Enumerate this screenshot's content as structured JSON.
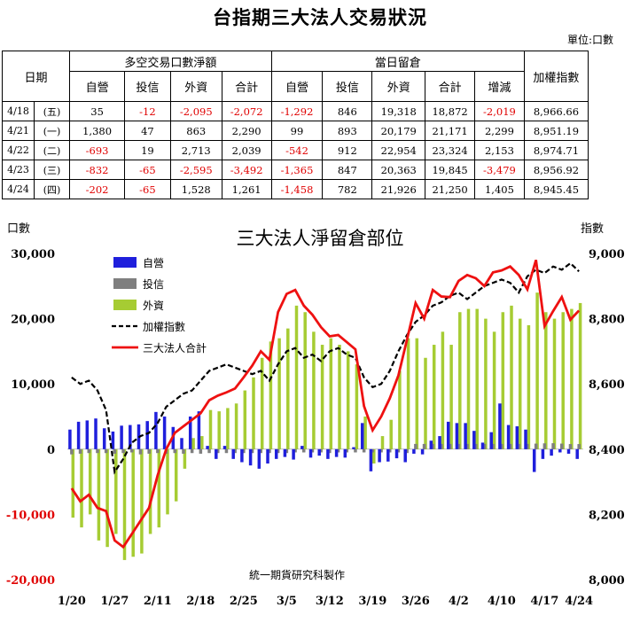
{
  "page": {
    "title": "台指期三大法人交易狀況",
    "unit": "單位:口數"
  },
  "table": {
    "date_header": "日期",
    "net_group": "多空交易口數淨額",
    "oi_group": "當日留倉",
    "index_header": "加權指數",
    "net_cols": [
      "自營",
      "投信",
      "外資",
      "合計"
    ],
    "oi_cols": [
      "自營",
      "投信",
      "外資",
      "合計",
      "增減"
    ],
    "rows": [
      {
        "date": "4/18",
        "dow": "(五)",
        "cells": [
          "35",
          "-12",
          "-2,095",
          "-2,072",
          "-1,292",
          "846",
          "19,318",
          "18,872",
          "-2,019",
          "8,966.66"
        ]
      },
      {
        "date": "4/21",
        "dow": "(一)",
        "cells": [
          "1,380",
          "47",
          "863",
          "2,290",
          "99",
          "893",
          "20,179",
          "21,171",
          "2,299",
          "8,951.19"
        ]
      },
      {
        "date": "4/22",
        "dow": "(二)",
        "cells": [
          "-693",
          "19",
          "2,713",
          "2,039",
          "-542",
          "912",
          "22,954",
          "23,324",
          "2,153",
          "8,974.71"
        ]
      },
      {
        "date": "4/23",
        "dow": "(三)",
        "cells": [
          "-832",
          "-65",
          "-2,595",
          "-3,492",
          "-1,365",
          "847",
          "20,363",
          "19,845",
          "-3,479",
          "8,956.92"
        ]
      },
      {
        "date": "4/24",
        "dow": "(四)",
        "cells": [
          "-202",
          "-65",
          "1,528",
          "1,261",
          "-1,458",
          "782",
          "21,926",
          "21,250",
          "1,405",
          "8,945.45"
        ]
      }
    ]
  },
  "chart_data": {
    "type": "bar",
    "title": "三大法人淨留倉部位",
    "ylabel": "口數",
    "y2label": "指數",
    "credit": "統一期貨研究科製作",
    "ylim": [
      -20000,
      30000
    ],
    "y2lim": [
      8000,
      9000
    ],
    "yticks": [
      "30,000",
      "20,000",
      "10,000",
      "0",
      "-10,000",
      "-20,000"
    ],
    "y2ticks": [
      "9,000",
      "8,800",
      "8,600",
      "8,400",
      "8,200",
      "8,000"
    ],
    "xticks": [
      {
        "i": 0,
        "label": "1/20"
      },
      {
        "i": 5,
        "label": "1/27"
      },
      {
        "i": 10,
        "label": "2/11"
      },
      {
        "i": 15,
        "label": "2/18"
      },
      {
        "i": 20,
        "label": "2/25"
      },
      {
        "i": 25,
        "label": "3/5"
      },
      {
        "i": 30,
        "label": "3/12"
      },
      {
        "i": 35,
        "label": "3/19"
      },
      {
        "i": 40,
        "label": "3/26"
      },
      {
        "i": 45,
        "label": "4/2"
      },
      {
        "i": 50,
        "label": "4/10"
      },
      {
        "i": 55,
        "label": "4/17"
      },
      {
        "i": 59,
        "label": "4/24"
      }
    ],
    "legend": [
      "自營",
      "投信",
      "外資",
      "加權指數",
      "三大法人合計"
    ],
    "colors": {
      "dealer": "#1f1fdc",
      "trust": "#7f7f7f",
      "foreign": "#a6cc33",
      "index": "#000000",
      "total": "#ee1111"
    },
    "series": [
      {
        "name": "自營",
        "values": [
          3000,
          4200,
          4400,
          4700,
          3200,
          2700,
          3600,
          3700,
          3800,
          4300,
          5700,
          5000,
          3400,
          1700,
          5000,
          5800,
          500,
          -1500,
          500,
          -1500,
          -2000,
          -2500,
          -3000,
          -2200,
          -1500,
          -1200,
          -1600,
          500,
          -1300,
          -1000,
          -1500,
          -1200,
          -1300,
          300,
          4000,
          -3400,
          -2000,
          -1900,
          -1400,
          -2000,
          -700,
          -800,
          1300,
          2000,
          4200,
          4000,
          4000,
          2800,
          1000,
          2600,
          7000,
          3700,
          3500,
          3000,
          -3500,
          -1500,
          -1000,
          -500,
          -700,
          -1500
        ]
      },
      {
        "name": "投信",
        "values": [
          -800,
          -700,
          -600,
          -600,
          -600,
          -700,
          -600,
          -500,
          -800,
          -700,
          -600,
          -700,
          -600,
          -700,
          -600,
          -700,
          -600,
          -600,
          -600,
          -600,
          -600,
          -600,
          -600,
          -600,
          -600,
          -600,
          -500,
          -500,
          -500,
          -500,
          -600,
          -500,
          -500,
          -500,
          -500,
          -500,
          -500,
          -500,
          -500,
          -600,
          800,
          800,
          800,
          800,
          800,
          800,
          800,
          800,
          800,
          800,
          800,
          800,
          800,
          800,
          850,
          890,
          910,
          850,
          780,
          780
        ]
      },
      {
        "name": "外資",
        "values": [
          -10500,
          -12000,
          -10000,
          -14000,
          -15000,
          -13000,
          -17000,
          -16500,
          -16000,
          -13000,
          -12000,
          -10000,
          -8000,
          -3000,
          1700,
          2000,
          6000,
          5800,
          6300,
          7000,
          9000,
          11000,
          14000,
          16500,
          17000,
          18500,
          22000,
          21000,
          18000,
          16000,
          17000,
          16000,
          15000,
          13000,
          5000,
          -2200,
          2000,
          4500,
          12000,
          17000,
          17000,
          14000,
          16000,
          18000,
          16000,
          21000,
          21500,
          21500,
          20000,
          18000,
          21000,
          22000,
          20000,
          19000,
          24000,
          21000,
          20000,
          21000,
          21500,
          22400
        ]
      },
      {
        "name": "加權指數",
        "values": [
          8620,
          8600,
          8610,
          8580,
          8520,
          8330,
          8370,
          8420,
          8440,
          8450,
          8480,
          8530,
          8550,
          8570,
          8580,
          8610,
          8640,
          8650,
          8660,
          8650,
          8640,
          8630,
          8640,
          8610,
          8660,
          8700,
          8710,
          8680,
          8690,
          8670,
          8700,
          8710,
          8690,
          8680,
          8620,
          8590,
          8600,
          8640,
          8700,
          8750,
          8790,
          8810,
          8840,
          8850,
          8870,
          8880,
          8860,
          8880,
          8900,
          8910,
          8920,
          8910,
          8880,
          8930,
          8950,
          8940,
          8960,
          8950,
          8970,
          8945
        ]
      },
      {
        "name": "三大法人合計",
        "values": [
          -6000,
          -8000,
          -7000,
          -9000,
          -9500,
          -14000,
          -15000,
          -13000,
          -11000,
          -9000,
          -4000,
          0,
          2500,
          3500,
          4500,
          5500,
          7500,
          8200,
          8700,
          9300,
          11000,
          12800,
          15000,
          13700,
          21000,
          23800,
          24400,
          22000,
          20600,
          18700,
          17300,
          17500,
          16400,
          15300,
          6600,
          2900,
          5000,
          7800,
          11300,
          16800,
          22400,
          20000,
          24400,
          23400,
          23300,
          25800,
          26700,
          26200,
          25000,
          27100,
          27400,
          28000,
          26700,
          24500,
          29000,
          18872,
          21171,
          23324,
          19845,
          21250
        ]
      }
    ]
  }
}
